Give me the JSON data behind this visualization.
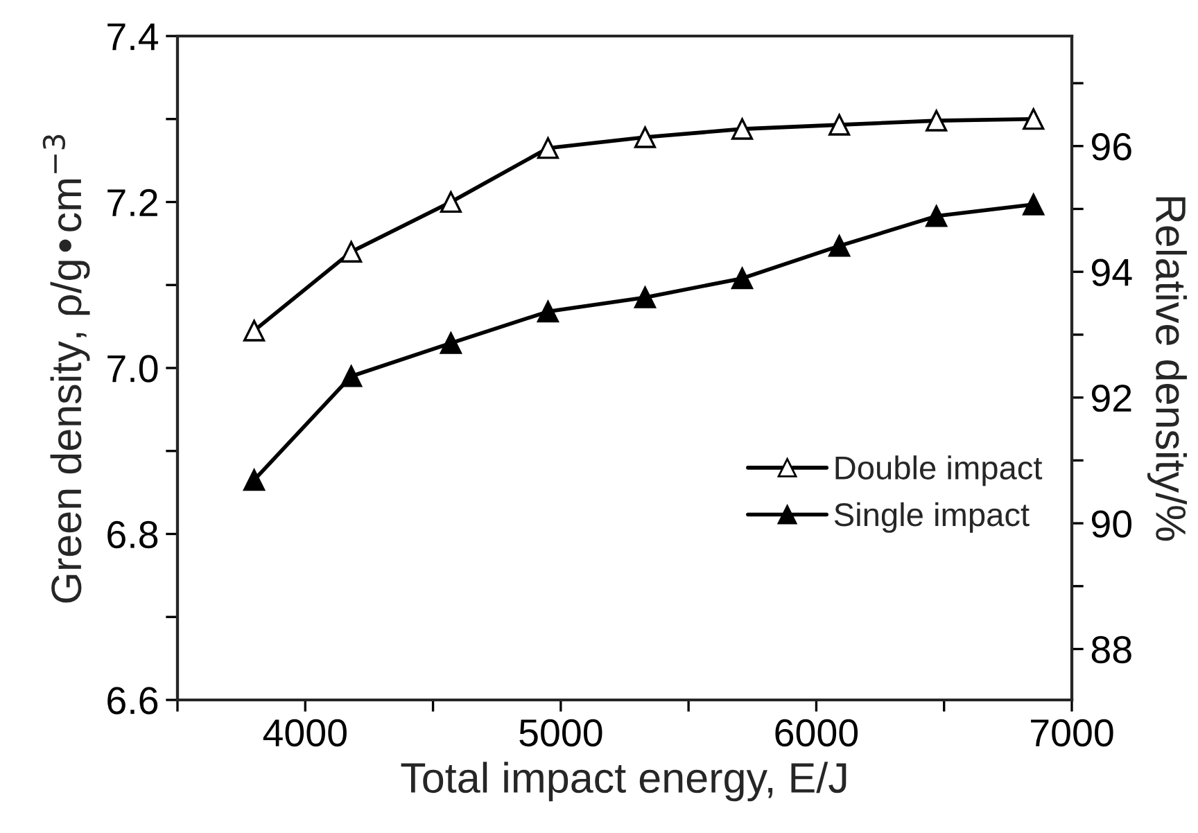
{
  "chart_data": {
    "type": "line",
    "xlabel": "Total impact energy, E/J",
    "ylabel": "Green density, ρ/g•cm$^{−3}$",
    "y2label": "Relative density/%",
    "x": [
      3800,
      4180,
      4570,
      4950,
      5330,
      5710,
      6090,
      6470,
      6850
    ],
    "series": [
      {
        "name": "Double impact",
        "color": "#000000",
        "colors": [
          "#ffffff",
          "#ffffff",
          "#ffffff",
          "#ffffff",
          "#ffffff",
          "#ffffff",
          "#ffffff",
          "#ffffff",
          "#ffffff"
        ],
        "values": [
          7.045,
          7.14,
          7.2,
          7.265,
          7.278,
          7.288,
          7.293,
          7.298,
          7.3
        ]
      },
      {
        "name": "Single impact",
        "color": "#000000",
        "values": [
          6.865,
          6.99,
          7.03,
          7.068,
          7.085,
          7.108,
          7.147,
          7.183,
          7.197
        ]
      }
    ],
    "marker": "triangle",
    "line_style": "solid",
    "xlim": [
      3500,
      7000
    ],
    "xticks": [
      {
        "value": 3500,
        "label": null
      },
      4000,
      {
        "value": 4500,
        "label": null
      },
      5000,
      {
        "value": 5500,
        "label": null
      },
      6000,
      {
        "value": 6500,
        "label": null
      },
      7000
    ],
    "ylim": [
      6.6,
      7.4
    ],
    "yticks": [
      6.6,
      {
        "value": 6.7,
        "label": null
      },
      6.8,
      {
        "value": 6.9,
        "label": null
      },
      {
        "value": 7.0,
        "label": "7.0"
      },
      {
        "value": 7.1,
        "label": null
      },
      7.2,
      {
        "value": 7.3,
        "label": null
      },
      7.4
    ],
    "y2lim": [
      87.19,
      97.75
    ],
    "y2ticks": [
      88,
      {
        "value": 89,
        "label": null
      },
      90,
      {
        "value": 91,
        "label": null
      },
      92,
      {
        "value": 93,
        "label": null
      },
      94,
      {
        "value": 95,
        "label": null
      },
      96,
      {
        "value": 97,
        "label": null
      }
    ],
    "grid": false,
    "legend": "center right"
  }
}
